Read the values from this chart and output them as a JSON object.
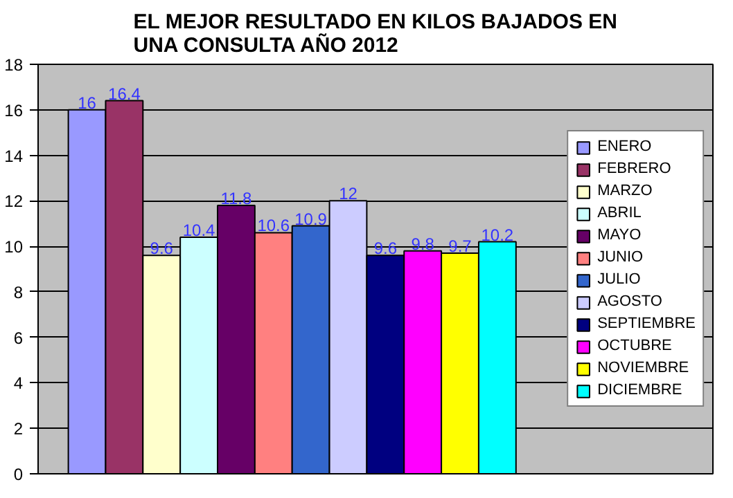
{
  "chart_data": {
    "type": "bar",
    "title": "EL MEJOR RESULTADO EN KILOS BAJADOS EN\nUNA CONSULTA AÑO 2012",
    "categories": [
      null
    ],
    "series": [
      {
        "name": "ENERO",
        "color": "#9999ff",
        "values": [
          16
        ]
      },
      {
        "name": "FEBRERO",
        "color": "#993366",
        "values": [
          16.4
        ]
      },
      {
        "name": "MARZO",
        "color": "#ffffcc",
        "values": [
          9.6
        ]
      },
      {
        "name": "ABRIL",
        "color": "#ccffff",
        "values": [
          10.4
        ]
      },
      {
        "name": "MAYO",
        "color": "#660066",
        "values": [
          11.8
        ]
      },
      {
        "name": "JUNIO",
        "color": "#ff8080",
        "values": [
          10.6
        ]
      },
      {
        "name": "JULIO",
        "color": "#3366cc",
        "values": [
          10.9
        ]
      },
      {
        "name": "AGOSTO",
        "color": "#ccccff",
        "values": [
          12
        ]
      },
      {
        "name": "SEPTIEMBRE",
        "color": "#000080",
        "values": [
          9.6
        ]
      },
      {
        "name": "OCTUBRE",
        "color": "#ff00ff",
        "values": [
          9.8
        ]
      },
      {
        "name": "NOVIEMBRE",
        "color": "#ffff00",
        "values": [
          9.7
        ]
      },
      {
        "name": "DICIEMBRE",
        "color": "#00ffff",
        "values": [
          10.2
        ]
      }
    ],
    "ylim": [
      0,
      18
    ],
    "yticks": [
      0,
      2,
      4,
      6,
      8,
      10,
      12,
      14,
      16,
      18
    ],
    "grid": "y",
    "legend": "right",
    "data_labels": true
  }
}
